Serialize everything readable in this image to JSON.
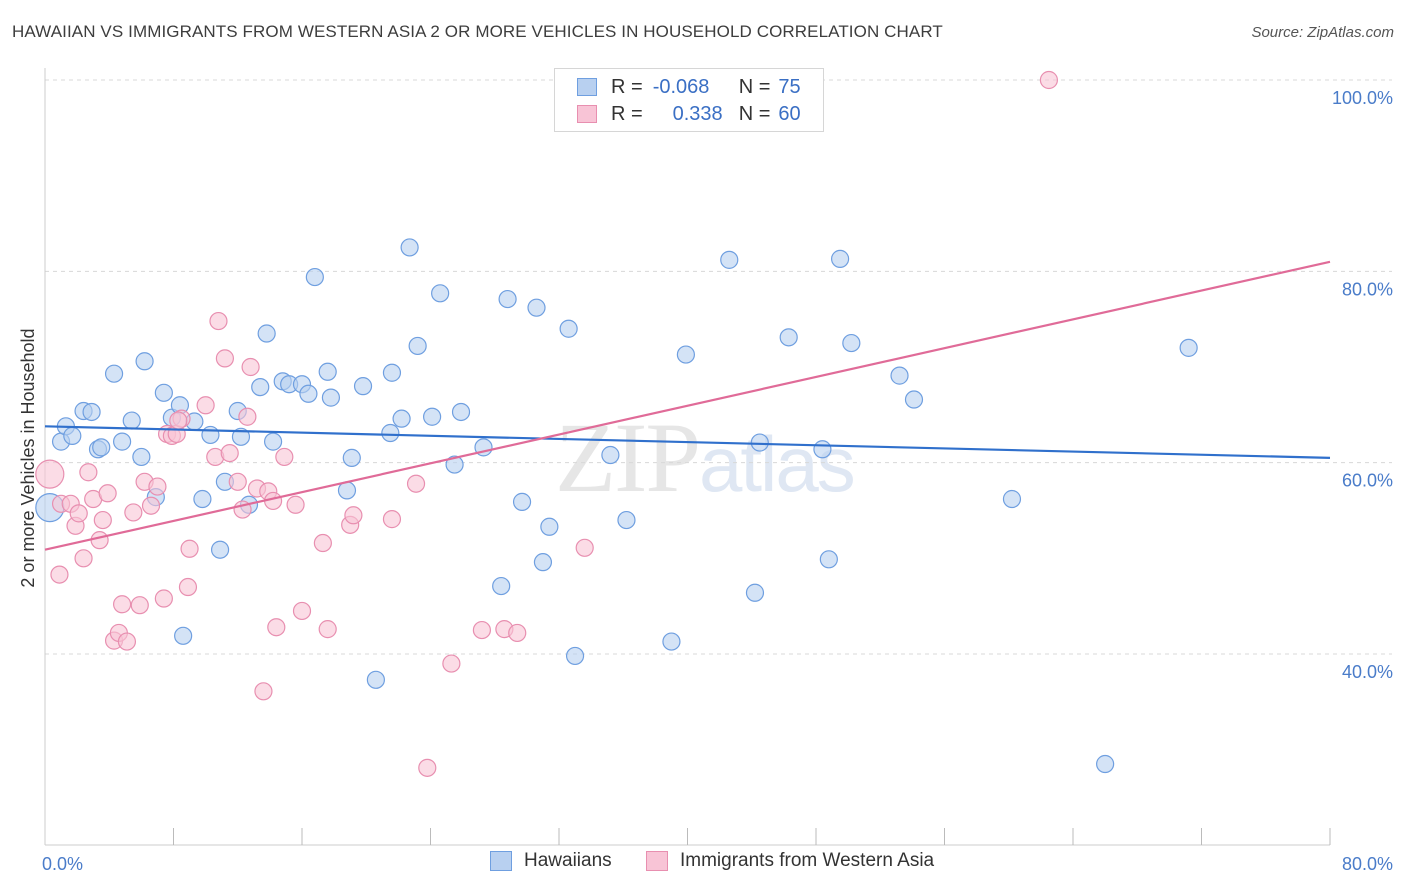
{
  "title": "HAWAIIAN VS IMMIGRANTS FROM WESTERN ASIA 2 OR MORE VEHICLES IN HOUSEHOLD CORRELATION CHART",
  "source": "Source: ZipAtlas.com",
  "watermark": {
    "zip": "ZIP",
    "atlas": "atlas"
  },
  "legend": {
    "rows": [
      {
        "r_label": "R =",
        "r_value": "-0.068",
        "n_label": "N =",
        "n_value": "75"
      },
      {
        "r_label": "R =",
        "r_value": "0.338",
        "n_label": "N =",
        "n_value": "60"
      }
    ]
  },
  "bottom_legend": [
    "Hawaiians",
    "Immigrants from Western Asia"
  ],
  "colors": {
    "series1_fill": "#b8d0f0",
    "series1_stroke": "#6f9fe0",
    "series1_line": "#3070cc",
    "series2_fill": "#f8c4d6",
    "series2_stroke": "#e88fb0",
    "series2_line": "#e06b98",
    "grid": "#d8d8d8",
    "tick_label": "#4a7cc9"
  },
  "chart_data": {
    "type": "scatter",
    "title": "HAWAIIAN VS IMMIGRANTS FROM WESTERN ASIA 2 OR MORE VEHICLES IN HOUSEHOLD CORRELATION CHART",
    "xlabel": "",
    "ylabel": "2 or more Vehicles in Household",
    "xlim": [
      0,
      80
    ],
    "ylim": [
      20,
      102
    ],
    "x_tick_labels": [
      "0.0%",
      "80.0%"
    ],
    "y_ticks": [
      40,
      60,
      80,
      100
    ],
    "y_tick_labels": [
      "40.0%",
      "60.0%",
      "80.0%",
      "100.0%"
    ],
    "grid": true,
    "legend_position": "top-center",
    "series": [
      {
        "name": "Hawaiians",
        "R": -0.068,
        "N": 75,
        "trend": [
          [
            0,
            63.8
          ],
          [
            80,
            60.5
          ]
        ],
        "points": [
          [
            0.3,
            55.3
          ],
          [
            1.0,
            62.2
          ],
          [
            1.3,
            63.8
          ],
          [
            1.7,
            62.8
          ],
          [
            2.4,
            65.4
          ],
          [
            2.9,
            65.3
          ],
          [
            3.3,
            61.4
          ],
          [
            3.5,
            61.6
          ],
          [
            4.3,
            69.3
          ],
          [
            4.8,
            62.2
          ],
          [
            5.4,
            64.4
          ],
          [
            6.0,
            60.6
          ],
          [
            6.2,
            70.6
          ],
          [
            6.9,
            56.4
          ],
          [
            7.4,
            67.3
          ],
          [
            7.9,
            64.7
          ],
          [
            8.4,
            66.0
          ],
          [
            8.6,
            41.9
          ],
          [
            9.8,
            56.2
          ],
          [
            10.3,
            62.9
          ],
          [
            10.9,
            50.9
          ],
          [
            11.2,
            58.0
          ],
          [
            12.0,
            65.4
          ],
          [
            12.2,
            62.7
          ],
          [
            12.7,
            55.6
          ],
          [
            13.4,
            67.9
          ],
          [
            13.8,
            73.5
          ],
          [
            14.2,
            62.2
          ],
          [
            14.8,
            68.5
          ],
          [
            15.2,
            68.2
          ],
          [
            16.0,
            68.2
          ],
          [
            16.4,
            67.2
          ],
          [
            16.8,
            79.4
          ],
          [
            17.6,
            69.5
          ],
          [
            17.8,
            66.8
          ],
          [
            18.8,
            57.1
          ],
          [
            19.1,
            60.5
          ],
          [
            19.8,
            68.0
          ],
          [
            20.6,
            37.3
          ],
          [
            21.5,
            63.1
          ],
          [
            21.6,
            69.4
          ],
          [
            22.2,
            64.6
          ],
          [
            22.7,
            82.5
          ],
          [
            23.2,
            72.2
          ],
          [
            24.1,
            64.8
          ],
          [
            24.6,
            77.7
          ],
          [
            25.5,
            59.8
          ],
          [
            25.9,
            65.3
          ],
          [
            27.3,
            61.6
          ],
          [
            28.4,
            47.1
          ],
          [
            28.8,
            77.1
          ],
          [
            29.7,
            55.9
          ],
          [
            30.6,
            76.2
          ],
          [
            31.0,
            49.6
          ],
          [
            31.4,
            53.3
          ],
          [
            32.6,
            74.0
          ],
          [
            33.0,
            39.8
          ],
          [
            35.2,
            60.8
          ],
          [
            36.2,
            54.0
          ],
          [
            39.0,
            41.3
          ],
          [
            39.9,
            71.3
          ],
          [
            42.6,
            81.2
          ],
          [
            44.2,
            46.4
          ],
          [
            44.5,
            62.1
          ],
          [
            46.3,
            73.1
          ],
          [
            48.4,
            61.4
          ],
          [
            48.8,
            49.9
          ],
          [
            49.5,
            81.3
          ],
          [
            50.2,
            72.5
          ],
          [
            53.2,
            69.1
          ],
          [
            54.1,
            66.6
          ],
          [
            60.2,
            56.2
          ],
          [
            66.0,
            28.5
          ],
          [
            71.2,
            72.0
          ],
          [
            9.3,
            64.3
          ]
        ]
      },
      {
        "name": "Immigrants from Western Asia",
        "R": 0.338,
        "N": 60,
        "trend": [
          [
            0,
            50.9
          ],
          [
            80,
            81.0
          ]
        ],
        "points": [
          [
            0.3,
            58.8
          ],
          [
            0.9,
            48.3
          ],
          [
            1.0,
            55.7
          ],
          [
            1.6,
            55.7
          ],
          [
            1.9,
            53.4
          ],
          [
            2.1,
            54.7
          ],
          [
            2.4,
            50.0
          ],
          [
            2.7,
            59.0
          ],
          [
            3.0,
            56.2
          ],
          [
            3.4,
            51.9
          ],
          [
            3.6,
            54.0
          ],
          [
            3.9,
            56.8
          ],
          [
            4.3,
            41.4
          ],
          [
            4.6,
            42.2
          ],
          [
            4.8,
            45.2
          ],
          [
            5.1,
            41.3
          ],
          [
            5.5,
            54.8
          ],
          [
            5.9,
            45.1
          ],
          [
            6.2,
            58.0
          ],
          [
            6.6,
            55.5
          ],
          [
            7.0,
            57.5
          ],
          [
            7.4,
            45.8
          ],
          [
            7.6,
            63.0
          ],
          [
            7.9,
            62.8
          ],
          [
            8.2,
            63.0
          ],
          [
            8.5,
            64.6
          ],
          [
            8.9,
            47.0
          ],
          [
            9.0,
            51.0
          ],
          [
            10.0,
            66.0
          ],
          [
            10.6,
            60.6
          ],
          [
            10.8,
            74.8
          ],
          [
            11.2,
            70.9
          ],
          [
            11.5,
            61.0
          ],
          [
            12.0,
            58.0
          ],
          [
            12.3,
            55.1
          ],
          [
            12.6,
            64.8
          ],
          [
            12.8,
            70.0
          ],
          [
            13.2,
            57.3
          ],
          [
            13.6,
            36.1
          ],
          [
            13.9,
            57.0
          ],
          [
            14.2,
            56.0
          ],
          [
            14.4,
            42.8
          ],
          [
            14.9,
            60.6
          ],
          [
            15.6,
            55.6
          ],
          [
            16.0,
            44.5
          ],
          [
            17.3,
            51.6
          ],
          [
            17.6,
            42.6
          ],
          [
            19.0,
            53.5
          ],
          [
            19.2,
            54.5
          ],
          [
            21.6,
            54.1
          ],
          [
            23.1,
            57.8
          ],
          [
            23.8,
            28.1
          ],
          [
            25.3,
            39.0
          ],
          [
            27.2,
            42.5
          ],
          [
            28.6,
            42.6
          ],
          [
            29.4,
            42.2
          ],
          [
            33.6,
            51.1
          ],
          [
            42.4,
            100.1
          ],
          [
            62.5,
            100.0
          ],
          [
            8.3,
            64.4
          ]
        ]
      }
    ]
  }
}
